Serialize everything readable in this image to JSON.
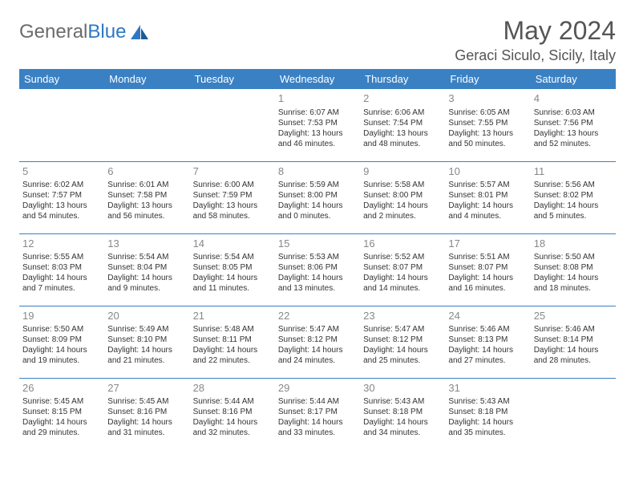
{
  "brand": {
    "part1": "General",
    "part2": "Blue"
  },
  "title": "May 2024",
  "location": "Geraci Siculo, Sicily, Italy",
  "colors": {
    "header_bg": "#3a81c4",
    "header_text": "#ffffff",
    "brand_gray": "#6b6b6b",
    "brand_blue": "#2e78c2",
    "text": "#333333",
    "daynum": "#888888",
    "background": "#ffffff"
  },
  "dayHeaders": [
    "Sunday",
    "Monday",
    "Tuesday",
    "Wednesday",
    "Thursday",
    "Friday",
    "Saturday"
  ],
  "weeks": [
    [
      null,
      null,
      null,
      {
        "n": "1",
        "sr": "6:07 AM",
        "ss": "7:53 PM",
        "dl": "13 hours and 46 minutes."
      },
      {
        "n": "2",
        "sr": "6:06 AM",
        "ss": "7:54 PM",
        "dl": "13 hours and 48 minutes."
      },
      {
        "n": "3",
        "sr": "6:05 AM",
        "ss": "7:55 PM",
        "dl": "13 hours and 50 minutes."
      },
      {
        "n": "4",
        "sr": "6:03 AM",
        "ss": "7:56 PM",
        "dl": "13 hours and 52 minutes."
      }
    ],
    [
      {
        "n": "5",
        "sr": "6:02 AM",
        "ss": "7:57 PM",
        "dl": "13 hours and 54 minutes."
      },
      {
        "n": "6",
        "sr": "6:01 AM",
        "ss": "7:58 PM",
        "dl": "13 hours and 56 minutes."
      },
      {
        "n": "7",
        "sr": "6:00 AM",
        "ss": "7:59 PM",
        "dl": "13 hours and 58 minutes."
      },
      {
        "n": "8",
        "sr": "5:59 AM",
        "ss": "8:00 PM",
        "dl": "14 hours and 0 minutes."
      },
      {
        "n": "9",
        "sr": "5:58 AM",
        "ss": "8:00 PM",
        "dl": "14 hours and 2 minutes."
      },
      {
        "n": "10",
        "sr": "5:57 AM",
        "ss": "8:01 PM",
        "dl": "14 hours and 4 minutes."
      },
      {
        "n": "11",
        "sr": "5:56 AM",
        "ss": "8:02 PM",
        "dl": "14 hours and 5 minutes."
      }
    ],
    [
      {
        "n": "12",
        "sr": "5:55 AM",
        "ss": "8:03 PM",
        "dl": "14 hours and 7 minutes."
      },
      {
        "n": "13",
        "sr": "5:54 AM",
        "ss": "8:04 PM",
        "dl": "14 hours and 9 minutes."
      },
      {
        "n": "14",
        "sr": "5:54 AM",
        "ss": "8:05 PM",
        "dl": "14 hours and 11 minutes."
      },
      {
        "n": "15",
        "sr": "5:53 AM",
        "ss": "8:06 PM",
        "dl": "14 hours and 13 minutes."
      },
      {
        "n": "16",
        "sr": "5:52 AM",
        "ss": "8:07 PM",
        "dl": "14 hours and 14 minutes."
      },
      {
        "n": "17",
        "sr": "5:51 AM",
        "ss": "8:07 PM",
        "dl": "14 hours and 16 minutes."
      },
      {
        "n": "18",
        "sr": "5:50 AM",
        "ss": "8:08 PM",
        "dl": "14 hours and 18 minutes."
      }
    ],
    [
      {
        "n": "19",
        "sr": "5:50 AM",
        "ss": "8:09 PM",
        "dl": "14 hours and 19 minutes."
      },
      {
        "n": "20",
        "sr": "5:49 AM",
        "ss": "8:10 PM",
        "dl": "14 hours and 21 minutes."
      },
      {
        "n": "21",
        "sr": "5:48 AM",
        "ss": "8:11 PM",
        "dl": "14 hours and 22 minutes."
      },
      {
        "n": "22",
        "sr": "5:47 AM",
        "ss": "8:12 PM",
        "dl": "14 hours and 24 minutes."
      },
      {
        "n": "23",
        "sr": "5:47 AM",
        "ss": "8:12 PM",
        "dl": "14 hours and 25 minutes."
      },
      {
        "n": "24",
        "sr": "5:46 AM",
        "ss": "8:13 PM",
        "dl": "14 hours and 27 minutes."
      },
      {
        "n": "25",
        "sr": "5:46 AM",
        "ss": "8:14 PM",
        "dl": "14 hours and 28 minutes."
      }
    ],
    [
      {
        "n": "26",
        "sr": "5:45 AM",
        "ss": "8:15 PM",
        "dl": "14 hours and 29 minutes."
      },
      {
        "n": "27",
        "sr": "5:45 AM",
        "ss": "8:16 PM",
        "dl": "14 hours and 31 minutes."
      },
      {
        "n": "28",
        "sr": "5:44 AM",
        "ss": "8:16 PM",
        "dl": "14 hours and 32 minutes."
      },
      {
        "n": "29",
        "sr": "5:44 AM",
        "ss": "8:17 PM",
        "dl": "14 hours and 33 minutes."
      },
      {
        "n": "30",
        "sr": "5:43 AM",
        "ss": "8:18 PM",
        "dl": "14 hours and 34 minutes."
      },
      {
        "n": "31",
        "sr": "5:43 AM",
        "ss": "8:18 PM",
        "dl": "14 hours and 35 minutes."
      },
      null
    ]
  ],
  "labels": {
    "sunrise": "Sunrise:",
    "sunset": "Sunset:",
    "daylight": "Daylight:"
  }
}
